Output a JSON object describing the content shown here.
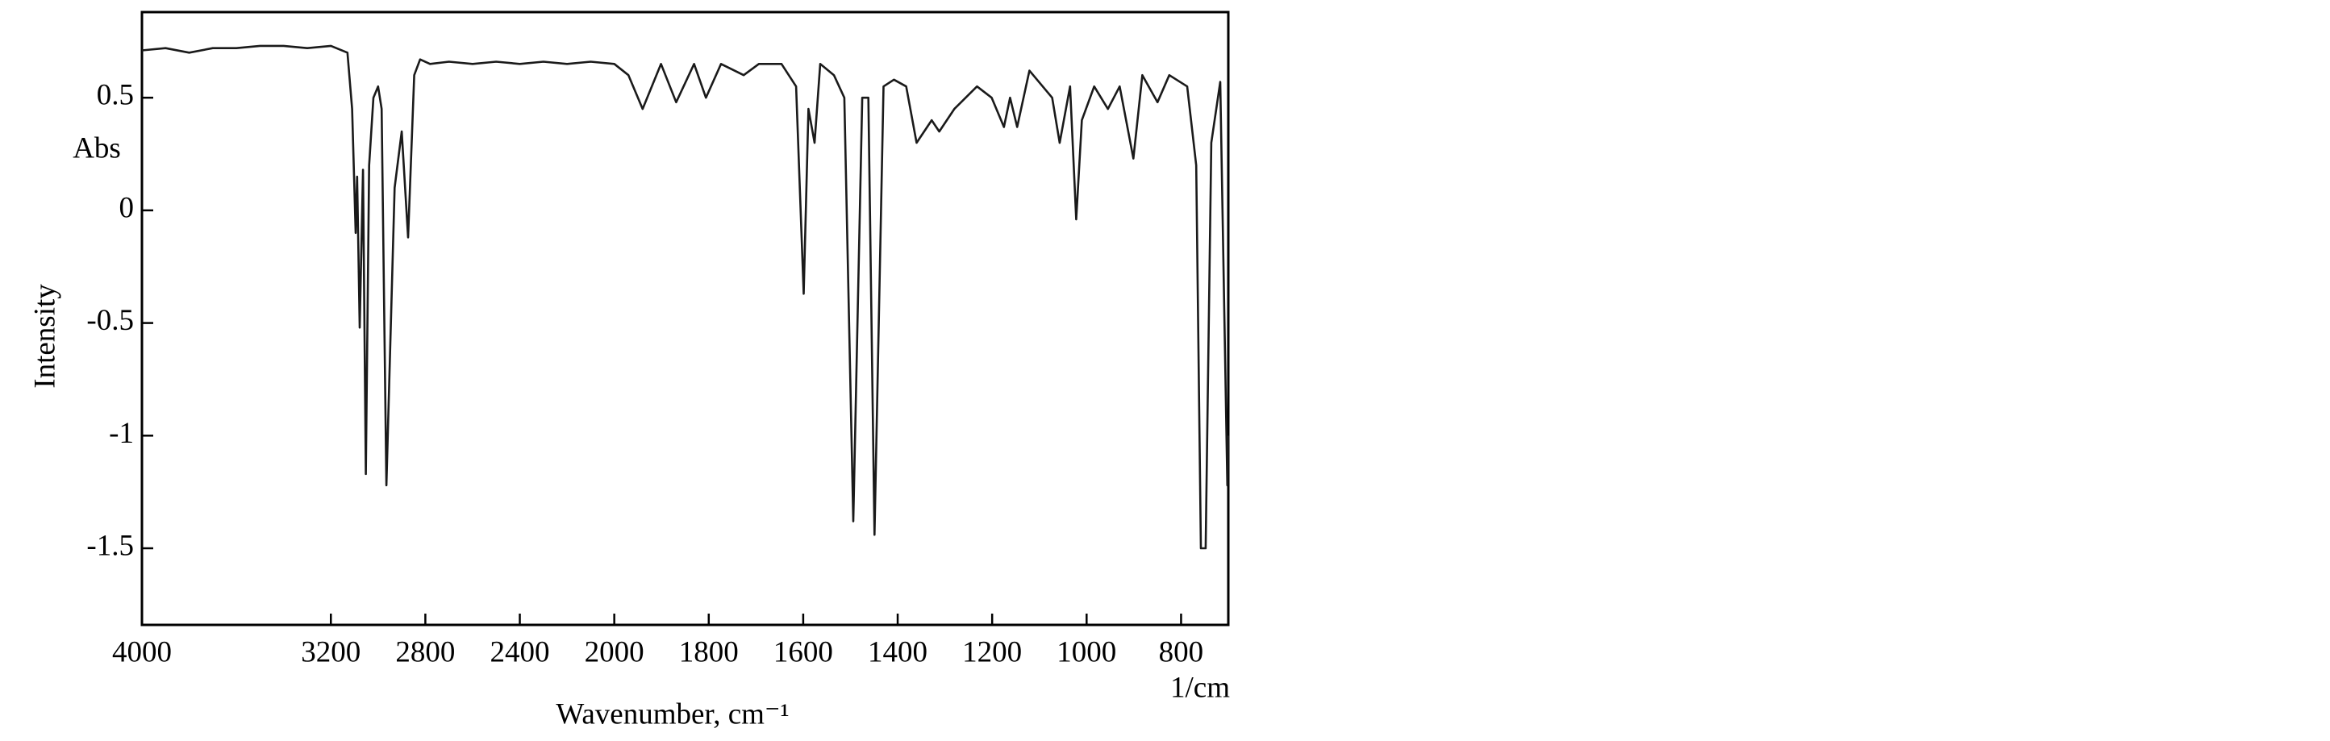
{
  "chart_data": {
    "type": "line",
    "ylabel": "Intensity",
    "ylabel2": "Abs",
    "xlabel": "Wavenumber, cm⁻¹",
    "xunit": "1/cm",
    "xlim": [
      4000,
      700
    ],
    "xscale": {
      "break": 2000,
      "factor": 2
    },
    "xticks": [
      4000,
      3200,
      2800,
      2400,
      2000,
      1800,
      1600,
      1400,
      1200,
      1000,
      800
    ],
    "ylim": [
      -1.84,
      0.88
    ],
    "yticks": [
      0.5,
      0,
      -0.5,
      -1,
      -1.5
    ],
    "series": [
      {
        "color": "#1a1a1a",
        "x": [
          4000,
          3900,
          3800,
          3700,
          3600,
          3500,
          3400,
          3300,
          3200,
          3130,
          3110,
          3095,
          3089,
          3078,
          3064,
          3052,
          3038,
          3020,
          3000,
          2985,
          2965,
          2930,
          2900,
          2873,
          2847,
          2822,
          2780,
          2700,
          2600,
          2500,
          2400,
          2300,
          2200,
          2100,
          2000,
          1970,
          1940,
          1901,
          1869,
          1831,
          1806,
          1774,
          1726,
          1694,
          1646,
          1615,
          1599,
          1589,
          1576,
          1564,
          1535,
          1513,
          1494,
          1475,
          1462,
          1449,
          1430,
          1408,
          1382,
          1360,
          1328,
          1312,
          1280,
          1232,
          1201,
          1175,
          1162,
          1147,
          1121,
          1073,
          1057,
          1035,
          1022,
          1010,
          984,
          955,
          930,
          901,
          882,
          850,
          825,
          787,
          768,
          758,
          748,
          736,
          717,
          702,
          700
        ],
        "values": [
          0.71,
          0.72,
          0.7,
          0.72,
          0.72,
          0.73,
          0.73,
          0.72,
          0.73,
          0.7,
          0.45,
          -0.1,
          0.15,
          -0.52,
          0.18,
          -1.17,
          0.2,
          0.5,
          0.55,
          0.45,
          -1.22,
          0.1,
          0.35,
          -0.12,
          0.6,
          0.67,
          0.65,
          0.66,
          0.65,
          0.66,
          0.65,
          0.66,
          0.65,
          0.66,
          0.65,
          0.6,
          0.45,
          0.65,
          0.48,
          0.65,
          0.5,
          0.65,
          0.6,
          0.65,
          0.65,
          0.55,
          -0.37,
          0.45,
          0.3,
          0.65,
          0.6,
          0.5,
          -1.38,
          0.5,
          0.5,
          -1.44,
          0.55,
          0.58,
          0.55,
          0.3,
          0.4,
          0.35,
          0.45,
          0.55,
          0.5,
          0.37,
          0.5,
          0.37,
          0.62,
          0.5,
          0.3,
          0.55,
          -0.04,
          0.4,
          0.55,
          0.45,
          0.55,
          0.23,
          0.6,
          0.48,
          0.6,
          0.55,
          0.2,
          -1.5,
          -1.5,
          0.3,
          0.57,
          -1.22,
          -1.0
        ]
      }
    ]
  }
}
